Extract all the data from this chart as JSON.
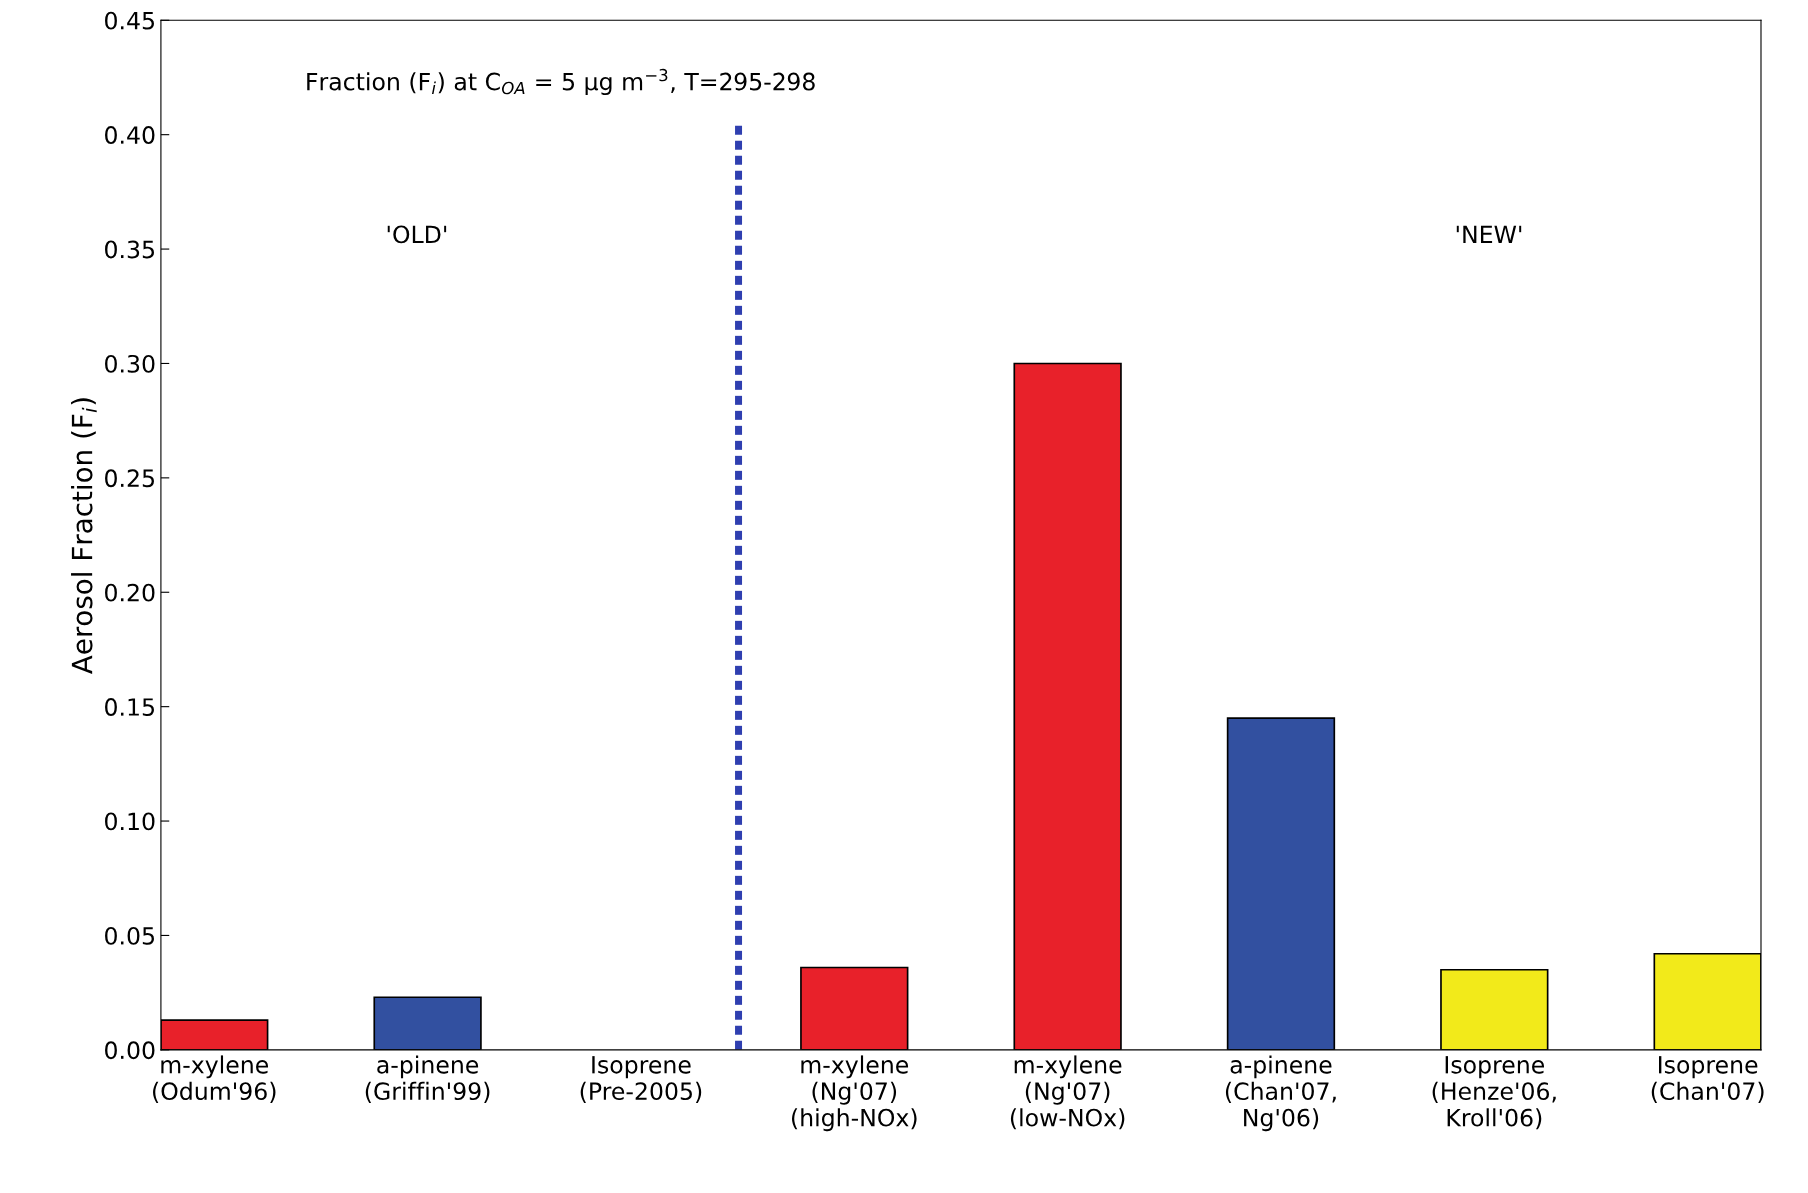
{
  "chart_data": {
    "type": "bar",
    "ylabel": "Aerosol Fraction (F$_{i}$)",
    "categories": [
      "m-xylene\n(Odum'96)",
      "a-pinene\n(Griffin'99)",
      "Isoprene\n(Pre-2005)",
      "m-xylene\n(Ng'07)\n(high-NOx)",
      "m-xylene\n(Ng'07)\n(low-NOx)",
      "a-pinene\n(Chan'07,\nNg'06)",
      "Isoprene\n(Henze'06,\nKroll'06)",
      "Isoprene\n(Chan'07)"
    ],
    "values": [
      0.013,
      0.023,
      0,
      0.036,
      0.3,
      0.145,
      0.035,
      0.042
    ],
    "colors": [
      "#e8212a",
      "#3250a0",
      "#e8212a",
      "#e8212a",
      "#e8212a",
      "#3250a0",
      "#f2ea1a",
      "#f2ea1a"
    ],
    "ylim": [
      0,
      0.45
    ],
    "yticks": [
      {
        "value": 0,
        "label": "0.00"
      },
      0.05,
      {
        "value": 0.1,
        "label": "0.10"
      },
      0.15,
      {
        "value": 0.2,
        "label": "0.20"
      },
      0.25,
      {
        "value": 0.3,
        "label": "0.30"
      },
      0.35,
      {
        "value": 0.4,
        "label": "0.40"
      },
      0.45
    ],
    "grid": false,
    "annotations": [
      "Fraction (F$_{i}$) at C$_{OA}$ = 5 μg m$^{−3}$, T=295-298",
      "'OLD'",
      "'NEW'"
    ]
  }
}
